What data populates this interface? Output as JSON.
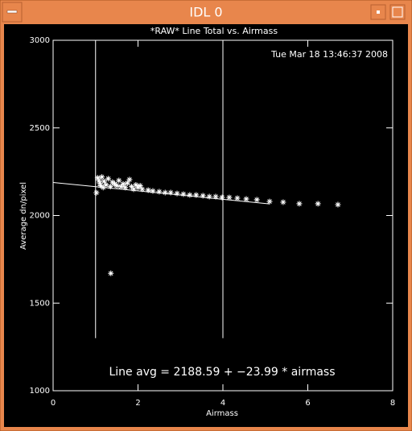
{
  "window": {
    "title": "IDL 0"
  },
  "chart_data": {
    "type": "scatter",
    "title": "*RAW* Line Total vs. Airmass",
    "timestamp": "Tue Mar 18 13:46:37 2008",
    "x_label": "Airmass",
    "y_label": "Average dn/pixel",
    "annotation": "Line avg = 2188.59 + −23.99 * airmass",
    "xlim": [
      0,
      8
    ],
    "xticks": [
      0,
      2,
      4,
      6,
      8
    ],
    "ylim": [
      1000,
      3000
    ],
    "yticks": [
      1000,
      1500,
      2000,
      2500,
      3000
    ],
    "color": "#ffffff",
    "x": [
      1.02,
      1.05,
      1.08,
      1.1,
      1.12,
      1.15,
      1.18,
      1.2,
      1.25,
      1.3,
      1.35,
      1.4,
      1.45,
      1.5,
      1.55,
      1.6,
      1.65,
      1.7,
      1.75,
      1.8,
      1.85,
      1.9,
      1.95,
      2.0,
      2.05,
      2.1,
      1.36,
      2.24,
      2.35,
      2.5,
      2.64,
      2.77,
      2.92,
      3.07,
      3.22,
      3.37,
      3.53,
      3.68,
      3.83,
      3.98,
      4.15,
      4.34,
      4.55,
      4.8,
      5.1,
      5.42,
      5.8,
      6.24,
      6.71
    ],
    "values": [
      2130,
      2215,
      2200,
      2185,
      2170,
      2220,
      2160,
      2195,
      2175,
      2210,
      2165,
      2190,
      2180,
      2170,
      2200,
      2165,
      2180,
      2160,
      2185,
      2205,
      2165,
      2150,
      2175,
      2160,
      2170,
      2150,
      1670,
      2145,
      2140,
      2136,
      2131,
      2131,
      2126,
      2122,
      2117,
      2117,
      2113,
      2108,
      2108,
      2103,
      2103,
      2099,
      2094,
      2090,
      2080,
      2076,
      2067,
      2067,
      2062
    ],
    "fit": {
      "intercept": 2188.59,
      "slope": -23.99,
      "xrange": [
        0,
        5.1
      ]
    },
    "vlines": {
      "x": [
        1,
        4
      ],
      "ymin": 1300
    }
  }
}
